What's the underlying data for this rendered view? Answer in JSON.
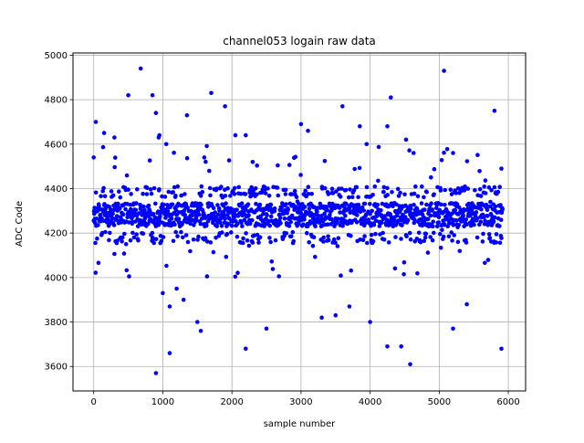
{
  "chart_data": {
    "type": "scatter",
    "title": "channel053 logain raw data",
    "xlabel": "sample number",
    "ylabel": "ADC Code",
    "xlim": [
      -300,
      6250
    ],
    "ylim": [
      3490,
      5010
    ],
    "xticks": [
      0,
      1000,
      2000,
      3000,
      4000,
      5000,
      6000
    ],
    "yticks": [
      3600,
      3800,
      4000,
      4200,
      4400,
      4600,
      4800,
      5000
    ],
    "grid": true,
    "marker_color": "#0000ff",
    "n_samples": 5920,
    "dense_band": [
      4230,
      4335
    ],
    "upper_band_center": 4385,
    "lower_band_center": 4180,
    "series": [
      {
        "values_outliers_x": [
          0,
          30,
          150,
          300,
          500,
          680,
          850,
          900,
          950,
          1000,
          1100,
          1200,
          1350,
          1600,
          1700,
          1900,
          2050,
          2200,
          2300,
          3000,
          3100,
          3600,
          3850,
          3950,
          4250,
          4300,
          4520,
          4630,
          5070,
          5200,
          5800,
          5900,
          900,
          1100,
          1500,
          1550,
          2200,
          2500,
          4000,
          4250,
          4450,
          4580,
          5900,
          940,
          1050,
          1300,
          3300,
          3500,
          3700,
          5200,
          5400
        ],
        "values_outliers_y": [
          4540,
          4700,
          4650,
          4630,
          4820,
          4940,
          4820,
          4740,
          4640,
          3930,
          3660,
          3950,
          4730,
          4540,
          4830,
          4770,
          4640,
          4640,
          4520,
          4690,
          4660,
          4770,
          4680,
          4600,
          4680,
          4810,
          4620,
          4560,
          4930,
          4560,
          4750,
          4490,
          3570,
          3870,
          3800,
          3760,
          3680,
          3770,
          3800,
          3690,
          3690,
          3610,
          3680,
          4630,
          4600,
          3900,
          3820,
          3830,
          3870,
          3770,
          3880
        ]
      }
    ]
  }
}
